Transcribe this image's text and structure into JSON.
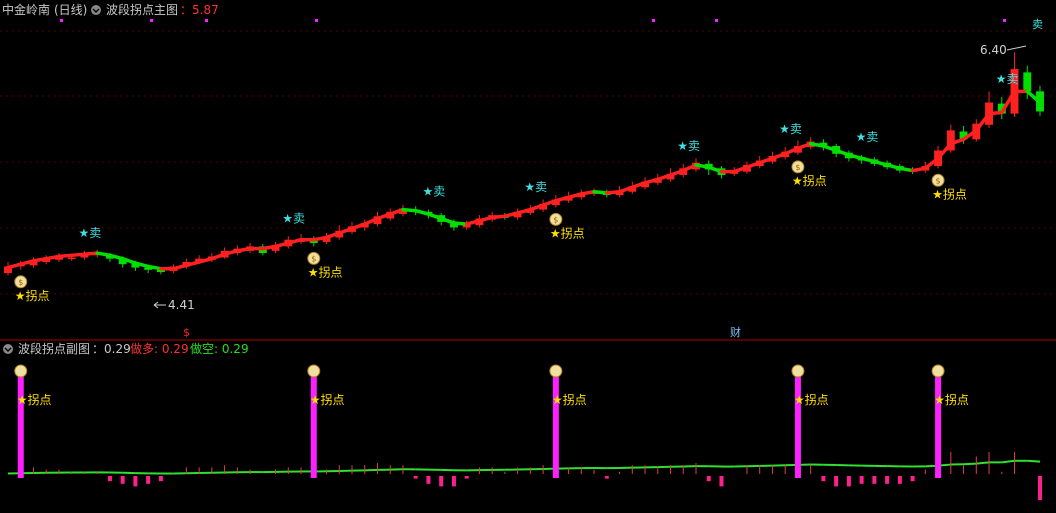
{
  "main": {
    "stock_name": "中金岭南",
    "period": "(日线)",
    "indicator_name": "波段拐点主图",
    "value_label": "：5.87",
    "high_label": "6.40",
    "low_label": "4.41",
    "buy_label": "★拐点",
    "sell_label": "★卖",
    "sell_short": "卖",
    "finance_marker": "财",
    "dollar_marker": "$"
  },
  "sub": {
    "indicator_name": "波段拐点副图",
    "value_label": "：0.29",
    "long_label": "做多: 0.29",
    "short_label": "做空: 0.29",
    "buy_label": "★拐点"
  },
  "colors": {
    "background": "#000000",
    "up": "#ff2020",
    "down": "#00e000",
    "text": "#c8c8c8",
    "value": "#ff3030",
    "long": "#ff3030",
    "short": "#20e020",
    "sell": "#40e0e0",
    "buy": "#ffe000",
    "pivot_bar": "#ff20ff",
    "grid": "#550000"
  },
  "chart_data": [
    {
      "type": "candlestick",
      "title": "中金岭南 (日线) 波段拐点主图",
      "ylim": [
        4.0,
        6.6
      ],
      "max_annotation": 6.4,
      "min_annotation": 4.41,
      "candles": [
        [
          4.42,
          4.48,
          4.52,
          4.4
        ],
        [
          4.48,
          4.5,
          4.53,
          4.45
        ],
        [
          4.49,
          4.53,
          4.56,
          4.47
        ],
        [
          4.52,
          4.55,
          4.58,
          4.5
        ],
        [
          4.54,
          4.57,
          4.6,
          4.52
        ],
        [
          4.55,
          4.56,
          4.59,
          4.53
        ],
        [
          4.56,
          4.59,
          4.62,
          4.54
        ],
        [
          4.58,
          4.6,
          4.63,
          4.56
        ],
        [
          4.58,
          4.55,
          4.6,
          4.52
        ],
        [
          4.55,
          4.5,
          4.57,
          4.47
        ],
        [
          4.51,
          4.47,
          4.53,
          4.44
        ],
        [
          4.47,
          4.45,
          4.49,
          4.42
        ],
        [
          4.45,
          4.43,
          4.47,
          4.41
        ],
        [
          4.44,
          4.48,
          4.5,
          4.42
        ],
        [
          4.48,
          4.52,
          4.55,
          4.46
        ],
        [
          4.52,
          4.55,
          4.58,
          4.5
        ],
        [
          4.54,
          4.57,
          4.6,
          4.52
        ],
        [
          4.56,
          4.62,
          4.65,
          4.55
        ],
        [
          4.6,
          4.64,
          4.67,
          4.58
        ],
        [
          4.62,
          4.66,
          4.69,
          4.6
        ],
        [
          4.66,
          4.6,
          4.68,
          4.58
        ],
        [
          4.62,
          4.67,
          4.7,
          4.6
        ],
        [
          4.66,
          4.72,
          4.75,
          4.64
        ],
        [
          4.7,
          4.73,
          4.77,
          4.68
        ],
        [
          4.72,
          4.69,
          4.75,
          4.66
        ],
        [
          4.7,
          4.75,
          4.78,
          4.68
        ],
        [
          4.74,
          4.8,
          4.85,
          4.72
        ],
        [
          4.79,
          4.84,
          4.88,
          4.77
        ],
        [
          4.83,
          4.87,
          4.9,
          4.8
        ],
        [
          4.86,
          4.93,
          4.97,
          4.84
        ],
        [
          4.91,
          4.97,
          5.0,
          4.89
        ],
        [
          4.95,
          5.0,
          5.03,
          4.93
        ],
        [
          4.99,
          4.97,
          5.02,
          4.94
        ],
        [
          4.97,
          4.94,
          4.99,
          4.91
        ],
        [
          4.94,
          4.88,
          4.96,
          4.85
        ],
        [
          4.88,
          4.83,
          4.9,
          4.8
        ],
        [
          4.83,
          4.86,
          4.89,
          4.81
        ],
        [
          4.85,
          4.91,
          4.94,
          4.83
        ],
        [
          4.9,
          4.94,
          4.97,
          4.88
        ],
        [
          4.93,
          4.92,
          4.96,
          4.9
        ],
        [
          4.92,
          4.97,
          5.0,
          4.9
        ],
        [
          4.96,
          5.0,
          5.03,
          4.94
        ],
        [
          4.99,
          5.04,
          5.08,
          4.97
        ],
        [
          5.03,
          5.08,
          5.12,
          5.01
        ],
        [
          5.07,
          5.11,
          5.15,
          5.05
        ],
        [
          5.1,
          5.14,
          5.17,
          5.08
        ],
        [
          5.13,
          5.15,
          5.18,
          5.11
        ],
        [
          5.14,
          5.12,
          5.17,
          5.1
        ],
        [
          5.12,
          5.16,
          5.2,
          5.1
        ],
        [
          5.15,
          5.2,
          5.24,
          5.13
        ],
        [
          5.19,
          5.24,
          5.28,
          5.17
        ],
        [
          5.23,
          5.27,
          5.31,
          5.21
        ],
        [
          5.26,
          5.31,
          5.36,
          5.24
        ],
        [
          5.3,
          5.36,
          5.4,
          5.28
        ],
        [
          5.35,
          5.41,
          5.45,
          5.33
        ],
        [
          5.4,
          5.35,
          5.43,
          5.3
        ],
        [
          5.36,
          5.3,
          5.38,
          5.27
        ],
        [
          5.31,
          5.34,
          5.37,
          5.29
        ],
        [
          5.33,
          5.39,
          5.42,
          5.31
        ],
        [
          5.38,
          5.43,
          5.47,
          5.36
        ],
        [
          5.42,
          5.47,
          5.51,
          5.4
        ],
        [
          5.46,
          5.51,
          5.55,
          5.44
        ],
        [
          5.5,
          5.56,
          5.61,
          5.48
        ],
        [
          5.55,
          5.6,
          5.64,
          5.53
        ],
        [
          5.59,
          5.55,
          5.62,
          5.52
        ],
        [
          5.56,
          5.49,
          5.58,
          5.46
        ],
        [
          5.5,
          5.45,
          5.52,
          5.42
        ],
        [
          5.46,
          5.43,
          5.48,
          5.4
        ],
        [
          5.44,
          5.4,
          5.46,
          5.38
        ],
        [
          5.41,
          5.37,
          5.43,
          5.35
        ],
        [
          5.38,
          5.34,
          5.4,
          5.32
        ],
        [
          5.35,
          5.33,
          5.37,
          5.31
        ],
        [
          5.34,
          5.38,
          5.42,
          5.32
        ],
        [
          5.38,
          5.52,
          5.56,
          5.36
        ],
        [
          5.52,
          5.7,
          5.75,
          5.5
        ],
        [
          5.69,
          5.62,
          5.74,
          5.58
        ],
        [
          5.62,
          5.76,
          5.8,
          5.6
        ],
        [
          5.75,
          5.95,
          6.05,
          5.72
        ],
        [
          5.94,
          5.85,
          6.0,
          5.8
        ],
        [
          5.85,
          6.25,
          6.4,
          5.82
        ],
        [
          6.22,
          6.05,
          6.28,
          5.98
        ],
        [
          6.05,
          5.87,
          6.1,
          5.83
        ]
      ],
      "wave_line": [
        4.47,
        4.5,
        4.53,
        4.55,
        4.57,
        4.58,
        4.59,
        4.6,
        4.58,
        4.55,
        4.51,
        4.48,
        4.46,
        4.46,
        4.49,
        4.52,
        4.55,
        4.59,
        4.62,
        4.64,
        4.64,
        4.66,
        4.69,
        4.72,
        4.72,
        4.74,
        4.78,
        4.82,
        4.86,
        4.91,
        4.95,
        4.99,
        4.98,
        4.95,
        4.91,
        4.87,
        4.86,
        4.89,
        4.92,
        4.93,
        4.96,
        4.99,
        5.03,
        5.07,
        5.1,
        5.13,
        5.15,
        5.14,
        5.15,
        5.19,
        5.23,
        5.26,
        5.3,
        5.34,
        5.39,
        5.37,
        5.33,
        5.33,
        5.37,
        5.41,
        5.45,
        5.49,
        5.54,
        5.58,
        5.56,
        5.52,
        5.48,
        5.45,
        5.42,
        5.39,
        5.36,
        5.34,
        5.36,
        5.45,
        5.58,
        5.62,
        5.7,
        5.85,
        5.86,
        6.05,
        6.05,
        5.95
      ],
      "buy_points": [
        1,
        24,
        43,
        62,
        73
      ],
      "sell_points": [
        6,
        22,
        33,
        41,
        53,
        61,
        67,
        78
      ]
    },
    {
      "type": "bar",
      "title": "波段拐点副图",
      "series": [
        {
          "name": "做多",
          "last": 0.29
        },
        {
          "name": "做空",
          "last": 0.29
        }
      ],
      "pivot_bars": [
        1,
        24,
        43,
        62,
        73
      ]
    }
  ]
}
